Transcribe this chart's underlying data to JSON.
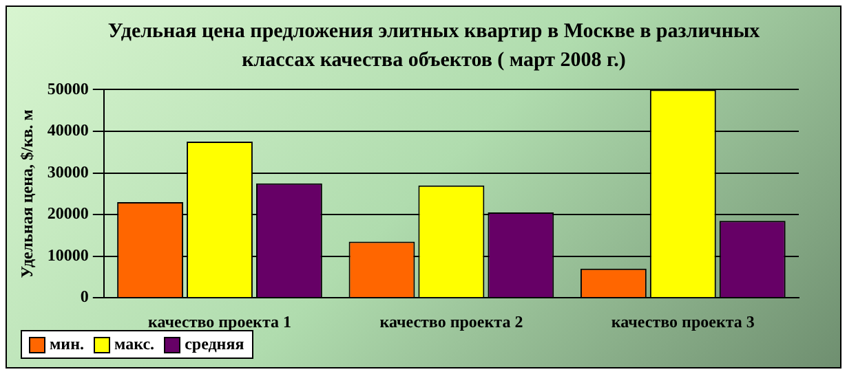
{
  "chart_data": {
    "type": "bar",
    "title": "Удельная цена предложения элитных квартир в Москве в различных классах качества объектов ( март 2008 г.)",
    "ylabel": "Удельная цена, $/кв. м",
    "categories": [
      "качество проекта 1",
      "качество проекта 2",
      "качество проекта 3"
    ],
    "series": [
      {
        "name": "мин.",
        "color": "#ff6600",
        "values": [
          23000,
          13500,
          7000
        ]
      },
      {
        "name": "макс.",
        "color": "#ffff00",
        "values": [
          37500,
          27000,
          50000
        ]
      },
      {
        "name": "средняя",
        "color": "#660066",
        "values": [
          27500,
          20500,
          18500
        ]
      }
    ],
    "ylim": [
      0,
      50000
    ],
    "yticks": [
      0,
      10000,
      20000,
      30000,
      40000,
      50000
    ],
    "grid": "y",
    "legend": "bottom left"
  }
}
